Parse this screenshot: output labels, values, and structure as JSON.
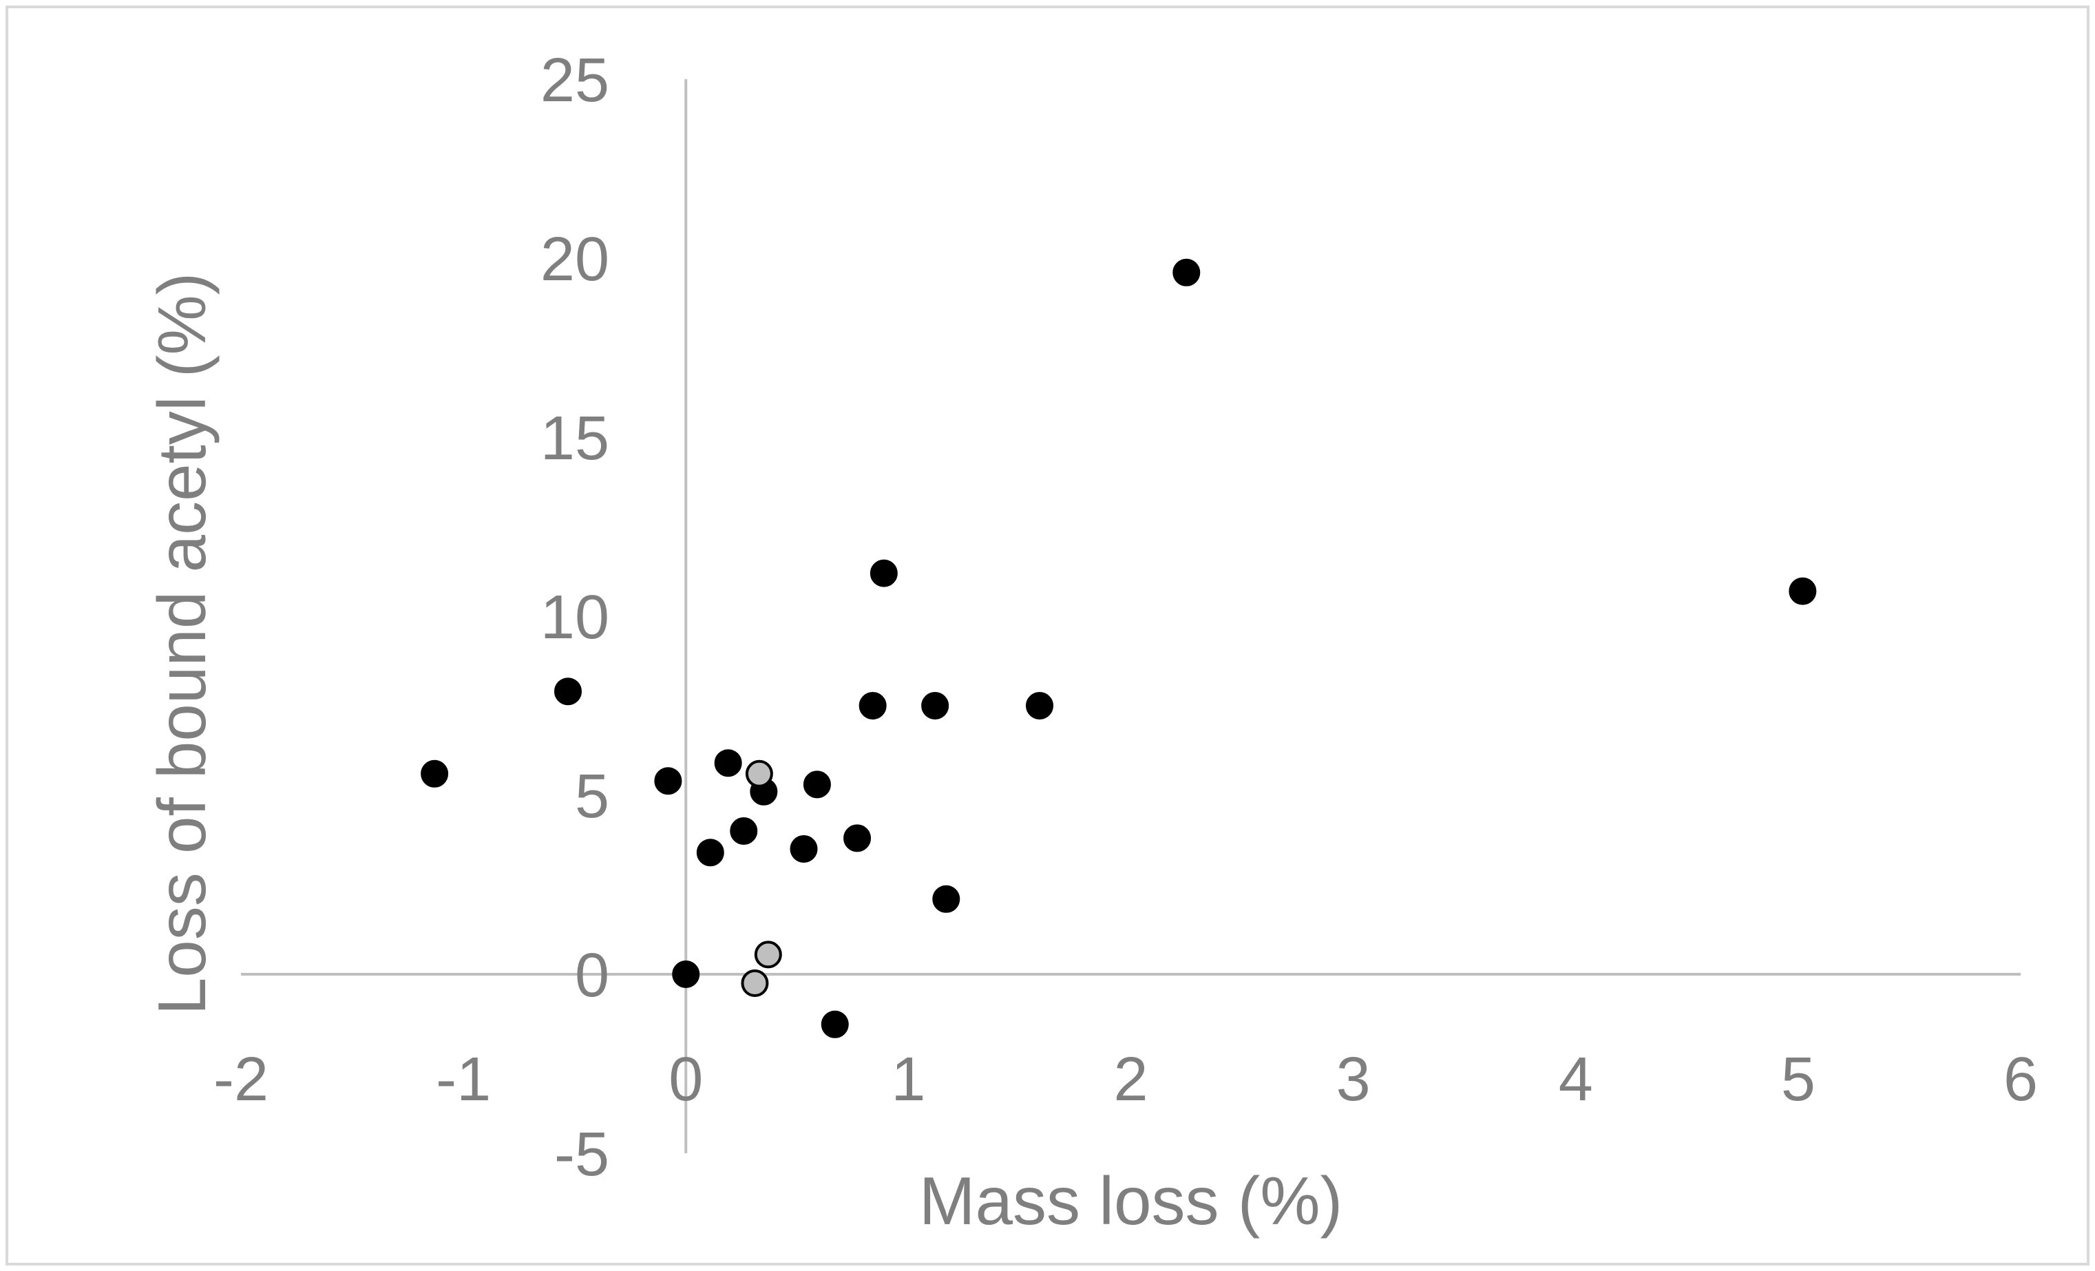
{
  "chart_data": {
    "type": "scatter",
    "title": "",
    "xlabel": "Mass loss (%)",
    "ylabel": "Loss of bound acetyl (%)",
    "xlim": [
      -2,
      6
    ],
    "ylim": [
      -5,
      25
    ],
    "x_ticks": [
      -2,
      -1,
      0,
      1,
      2,
      3,
      4,
      5,
      6
    ],
    "y_ticks": [
      -5,
      0,
      5,
      10,
      15,
      20,
      25
    ],
    "grid": false,
    "legend": "none",
    "colors": {
      "axis": "#bfbfbf",
      "text": "#7f7f7f",
      "border": "#d9d9d9",
      "series_black_fill": "#000000",
      "series_gray_fill": "#bfbfbf",
      "marker_stroke": "#000000"
    },
    "series": [
      {
        "color": "#000000",
        "points": [
          {
            "x": -1.13,
            "y": 5.6
          },
          {
            "x": -0.53,
            "y": 7.9
          },
          {
            "x": -0.08,
            "y": 5.4
          },
          {
            "x": 0.0,
            "y": 0.0
          },
          {
            "x": 0.11,
            "y": 3.4
          },
          {
            "x": 0.19,
            "y": 5.9
          },
          {
            "x": 0.26,
            "y": 4.0
          },
          {
            "x": 0.35,
            "y": 5.1
          },
          {
            "x": 0.53,
            "y": 3.5
          },
          {
            "x": 0.59,
            "y": 5.3
          },
          {
            "x": 0.67,
            "y": -1.4
          },
          {
            "x": 0.77,
            "y": 3.8
          },
          {
            "x": 0.84,
            "y": 7.5
          },
          {
            "x": 0.89,
            "y": 11.2
          },
          {
            "x": 1.12,
            "y": 7.5
          },
          {
            "x": 1.17,
            "y": 2.1
          },
          {
            "x": 1.59,
            "y": 7.5
          },
          {
            "x": 2.25,
            "y": 19.6
          },
          {
            "x": 5.02,
            "y": 10.7
          }
        ]
      },
      {
        "color": "#bfbfbf",
        "points": [
          {
            "x": 0.33,
            "y": 5.6
          },
          {
            "x": 0.37,
            "y": 0.55
          },
          {
            "x": 0.31,
            "y": -0.25
          }
        ]
      }
    ]
  }
}
